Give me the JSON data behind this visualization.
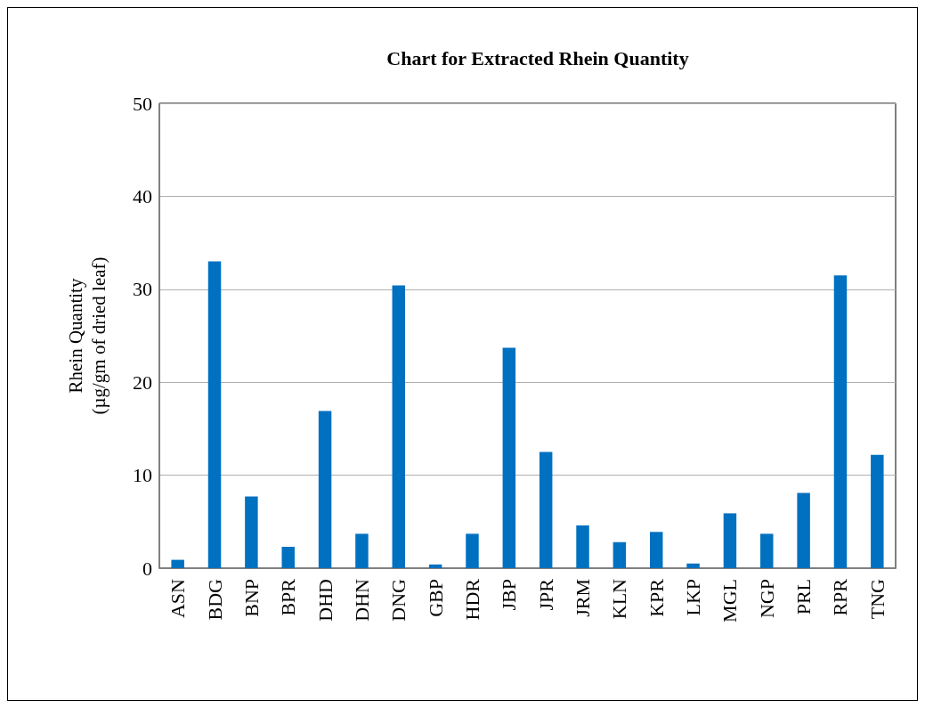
{
  "chart_data": {
    "type": "bar",
    "title": "Chart for Extracted Rhein Quantity",
    "ylabel": "Rhein Quantity\n(µg/gm of dried leaf)",
    "categories": [
      "ASN",
      "BDG",
      "BNP",
      "BPR",
      "DHD",
      "DHN",
      "DNG",
      "GBP",
      "HDR",
      "JBP",
      "JPR",
      "JRM",
      "KLN",
      "KPR",
      "LKP",
      "MGL",
      "NGP",
      "PRL",
      "RPR",
      "TNG"
    ],
    "values": [
      0.9,
      33.0,
      7.7,
      2.3,
      16.9,
      3.7,
      30.4,
      0.4,
      3.7,
      23.7,
      12.5,
      4.6,
      2.8,
      3.9,
      0.5,
      5.9,
      3.7,
      8.1,
      31.5,
      12.2
    ],
    "color": "#0070c0",
    "ylim": [
      0,
      50
    ],
    "yticks": [
      0,
      10,
      20,
      30,
      40,
      50
    ],
    "grid": "y"
  }
}
